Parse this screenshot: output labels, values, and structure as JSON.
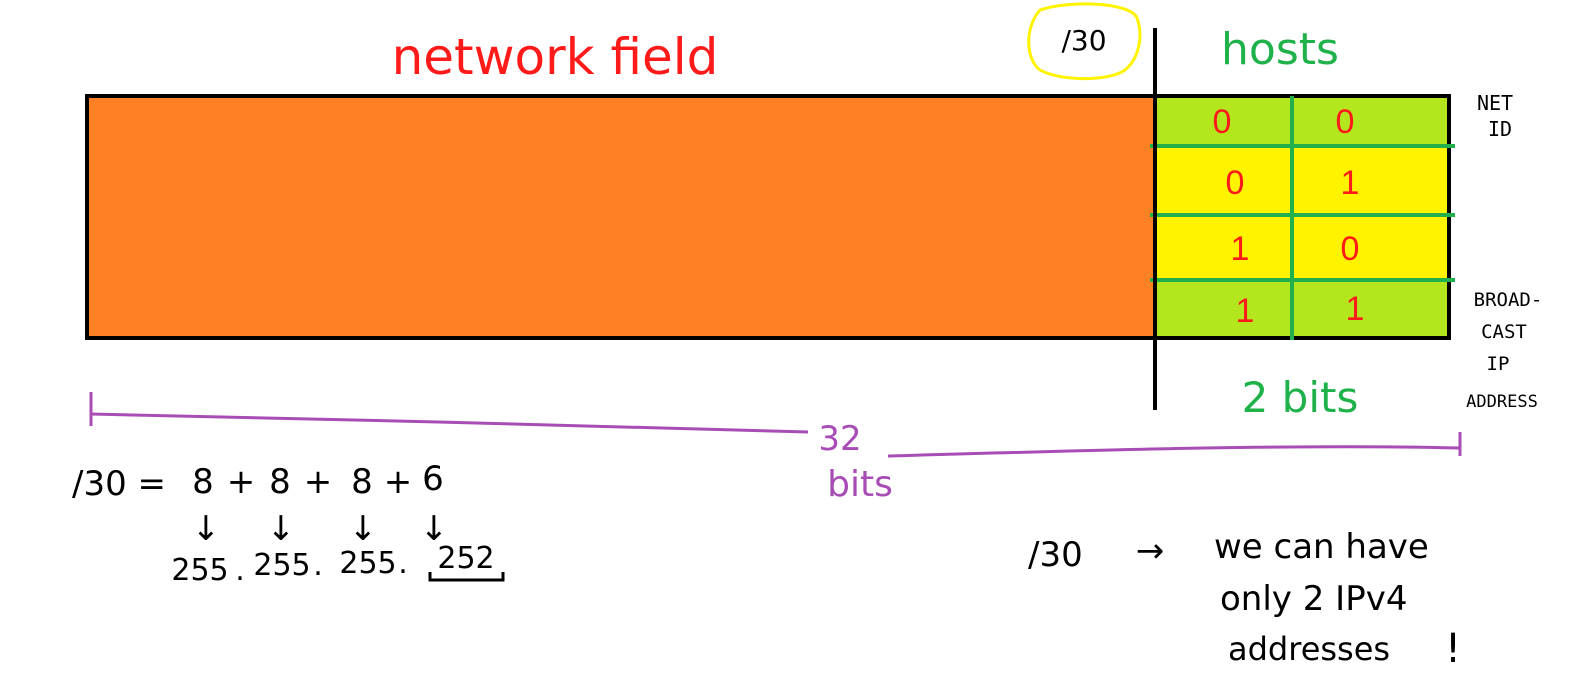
{
  "colors": {
    "network_fill": "#FF8124",
    "host_green": "#B4E61E",
    "host_yellow": "#FFF300",
    "grid_green": "#22B04C",
    "outline": "#000000",
    "red": "#FF1A1A",
    "green": "#1FB24A",
    "purple": "#A84CB6",
    "yellow_circle": "#FFF300",
    "ink": "#000000"
  },
  "labels": {
    "network_field": "network field",
    "prefix": "/30",
    "hosts": "hosts",
    "net_id_line1": "NET",
    "net_id_line2": "ID",
    "broadcast_line1": "BROAD-",
    "broadcast_line2": "CAST",
    "broadcast_line3": "IP",
    "broadcast_line4": "ADDRESS",
    "host_bits": "2 bits",
    "total_bits_line1": "32",
    "total_bits_line2": "bits"
  },
  "host_table": [
    [
      "0",
      "0"
    ],
    [
      "0",
      "1"
    ],
    [
      "1",
      "0"
    ],
    [
      "1",
      "1"
    ]
  ],
  "mask_calc": {
    "lhs": "/30 =",
    "octet_bits": [
      "8",
      "8",
      "8",
      "6"
    ],
    "plus": "+",
    "arrow": "↓",
    "octet_values": [
      "255",
      "255",
      "255",
      "252"
    ],
    "dot": "."
  },
  "note": {
    "prefix": "/30",
    "arrow": "→",
    "line1": "we can have",
    "line2": "only 2 IPv4",
    "line3": "addresses",
    "exclaim": "!"
  }
}
